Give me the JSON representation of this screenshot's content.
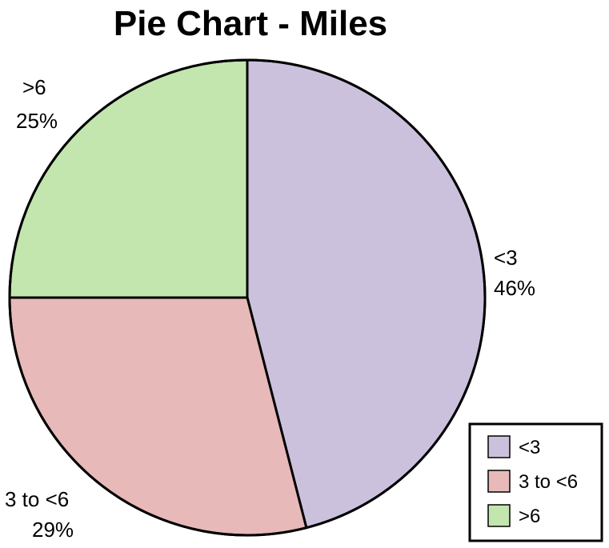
{
  "chart_data": {
    "type": "pie",
    "title": "Pie Chart - Miles",
    "slices": [
      {
        "label": "<3",
        "value": 46,
        "percent_label": "46%",
        "color": "#cbc1dd"
      },
      {
        "label": "3 to <6",
        "value": 29,
        "percent_label": "29%",
        "color": "#e7b9b9"
      },
      {
        "label": ">6",
        "value": 25,
        "percent_label": "25%",
        "color": "#c2e6ae"
      }
    ],
    "legend": {
      "placement": "bottom-right",
      "entries": [
        "<3",
        "3 to <6",
        ">6"
      ]
    },
    "start_angle": "top",
    "direction": "clockwise"
  }
}
